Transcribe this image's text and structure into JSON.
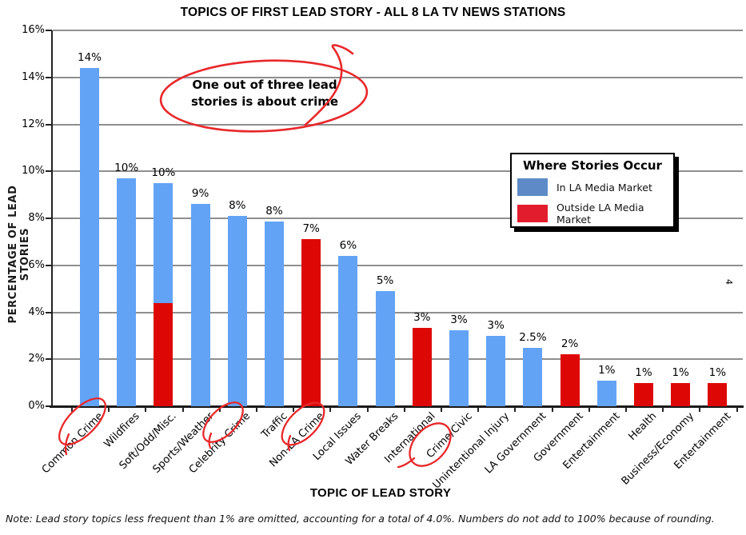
{
  "page": {
    "note": "Note: Lead story topics less frequent than 1% are omitted, accounting for a total of 4.0%. Numbers do not add to 100% because of rounding.",
    "page_number": "4"
  },
  "annotation": {
    "line1": "One out of three lead",
    "line2": "stories is about crime",
    "pen_color": "#E8282B"
  },
  "chart_data": {
    "type": "bar",
    "title": "TOPICS OF FIRST LEAD STORY - ALL 8 LA TV NEWS STATIONS",
    "xlabel": "TOPIC OF LEAD STORY",
    "ylabel": "PERCENTAGE OF LEAD STORIES",
    "ylim": [
      0,
      16
    ],
    "yticks": [
      0,
      2,
      4,
      6,
      8,
      10,
      12,
      14,
      16
    ],
    "ytick_labels": [
      "0%",
      "2%",
      "4%",
      "6%",
      "8%",
      "10%",
      "12%",
      "14%",
      "16%"
    ],
    "grid": true,
    "stacking": "red segment (Outside LA Media Market) at bottom, blue segment (In LA Media Market) on top",
    "colors": {
      "bar_in_la": "#63A3F6",
      "bar_outside_la": "#DD0806"
    },
    "legend": {
      "title": "Where Stories Occur",
      "position": "upper-right",
      "entries": [
        {
          "label": "In LA Media Market",
          "color": "#5E8BC8"
        },
        {
          "label": "Outside LA Media Market",
          "color": "#E31C2D"
        }
      ]
    },
    "bars": [
      {
        "category": "Common Crime",
        "value_label": "14%",
        "in_la": 14.4,
        "outside_la": 0,
        "crime_circled": true
      },
      {
        "category": "Wildfires",
        "value_label": "10%",
        "in_la": 9.7,
        "outside_la": 0,
        "crime_circled": false
      },
      {
        "category": "Soft/Odd/Misc.",
        "value_label": "10%",
        "in_la": 5.1,
        "outside_la": 4.4,
        "crime_circled": false
      },
      {
        "category": "Sports/Weather",
        "value_label": "9%",
        "in_la": 8.6,
        "outside_la": 0,
        "crime_circled": false
      },
      {
        "category": "Celebrity Crime",
        "value_label": "8%",
        "in_la": 8.1,
        "outside_la": 0,
        "crime_circled": true
      },
      {
        "category": "Traffic",
        "value_label": "8%",
        "in_la": 7.85,
        "outside_la": 0,
        "crime_circled": false
      },
      {
        "category": "Non-LA Crime",
        "value_label": "7%",
        "in_la": 0,
        "outside_la": 7.1,
        "crime_circled": true
      },
      {
        "category": "Local Issues",
        "value_label": "6%",
        "in_la": 6.4,
        "outside_la": 0,
        "crime_circled": false
      },
      {
        "category": "Water Breaks",
        "value_label": "5%",
        "in_la": 4.9,
        "outside_la": 0,
        "crime_circled": false
      },
      {
        "category": "International",
        "value_label": "3%",
        "in_la": 0,
        "outside_la": 3.35,
        "crime_circled": false
      },
      {
        "category": "Crime/Civic",
        "value_label": "3%",
        "in_la": 3.25,
        "outside_la": 0,
        "crime_circled": true
      },
      {
        "category": "Unintentional Injury",
        "value_label": "3%",
        "in_la": 3.0,
        "outside_la": 0,
        "crime_circled": false
      },
      {
        "category": "LA Government",
        "value_label": "2.5%",
        "in_la": 2.5,
        "outside_la": 0,
        "crime_circled": false
      },
      {
        "category": "Government",
        "value_label": "2%",
        "in_la": 0,
        "outside_la": 2.2,
        "crime_circled": false
      },
      {
        "category": "Entertainment",
        "value_label": "1%",
        "in_la": 1.1,
        "outside_la": 0,
        "crime_circled": false
      },
      {
        "category": "Health",
        "value_label": "1%",
        "in_la": 0,
        "outside_la": 1.0,
        "crime_circled": false
      },
      {
        "category": "Business/Economy",
        "value_label": "1%",
        "in_la": 0,
        "outside_la": 1.0,
        "crime_circled": false
      },
      {
        "category": "Entertainment",
        "value_label": "1%",
        "in_la": 0,
        "outside_la": 1.0,
        "crime_circled": false
      }
    ]
  }
}
